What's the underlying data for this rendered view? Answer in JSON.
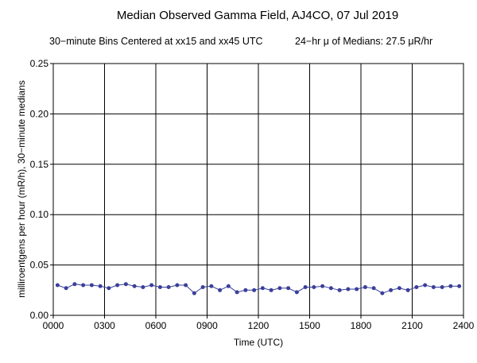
{
  "chart_data": {
    "type": "line",
    "title": "Median Observed Gamma Field, AJ4CO, 07 Jul 2019",
    "subtitle_left": "30−minute Bins Centered at xx15 and xx45 UTC",
    "subtitle_right": "24−hr μ of Medians: 27.5 μR/hr",
    "xlabel": "Time (UTC)",
    "ylabel": "milliroentgens per hour (mR/h), 30−minute medians",
    "xlim": [
      0,
      24
    ],
    "ylim": [
      0,
      0.25
    ],
    "x_ticks": [
      0,
      3,
      6,
      9,
      12,
      15,
      18,
      21,
      24
    ],
    "x_tick_labels": [
      "0000",
      "0300",
      "0600",
      "0900",
      "1200",
      "1500",
      "1800",
      "2100",
      "2400"
    ],
    "y_ticks": [
      0,
      0.05,
      0.1,
      0.15,
      0.2,
      0.25
    ],
    "y_tick_labels": [
      "0.00",
      "0.05",
      "0.10",
      "0.15",
      "0.20",
      "0.25"
    ],
    "grid": true,
    "line_color": "#3a3f9a",
    "series": [
      {
        "x": [
          0.25,
          0.75,
          1.25,
          1.75,
          2.25,
          2.75,
          3.25,
          3.75,
          4.25,
          4.75,
          5.25,
          5.75,
          6.25,
          6.75,
          7.25,
          7.75,
          8.25,
          8.75,
          9.25,
          9.75,
          10.25,
          10.75,
          11.25,
          11.75,
          12.25,
          12.75,
          13.25,
          13.75,
          14.25,
          14.75,
          15.25,
          15.75,
          16.25,
          16.75,
          17.25,
          17.75,
          18.25,
          18.75,
          19.25,
          19.75,
          20.25,
          20.75,
          21.25,
          21.75,
          22.25,
          22.75,
          23.25,
          23.75
        ],
        "y": [
          0.03,
          0.027,
          0.031,
          0.03,
          0.03,
          0.029,
          0.027,
          0.03,
          0.031,
          0.029,
          0.028,
          0.03,
          0.028,
          0.028,
          0.03,
          0.03,
          0.022,
          0.028,
          0.029,
          0.025,
          0.029,
          0.023,
          0.025,
          0.025,
          0.027,
          0.025,
          0.027,
          0.027,
          0.023,
          0.028,
          0.028,
          0.029,
          0.027,
          0.025,
          0.026,
          0.026,
          0.028,
          0.027,
          0.022,
          0.025,
          0.027,
          0.025,
          0.028,
          0.03,
          0.028,
          0.028,
          0.029,
          0.029
        ]
      }
    ]
  }
}
